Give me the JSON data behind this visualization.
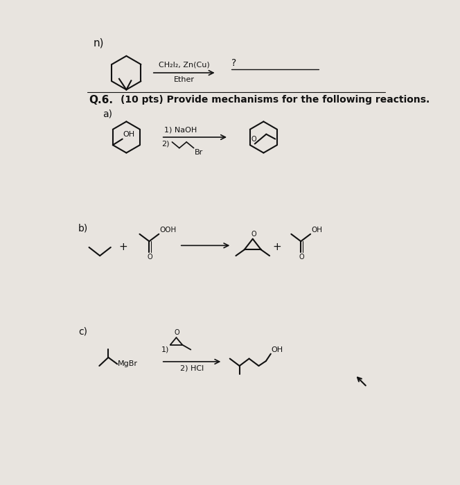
{
  "bg_color": "#e8e4df",
  "font_color": "#111111",
  "title_n": "n)",
  "reagent_n1": "CH₂I₂, Zn(Cu)",
  "reagent_n2": "Ether",
  "product_n": "?",
  "q6_label": "Q.6.",
  "q6_text": "(10 pts) Provide mechanisms for the following reactions.",
  "sub_a": "a)",
  "sub_b": "b)",
  "sub_c": "c)",
  "reagent_a1": "1) NaOH",
  "reagent_a2": "2)",
  "reagent_a2_br": "Br",
  "reagent_b_arrow": "→",
  "reagent_c1": "1)",
  "reagent_c2": "2) HCl",
  "mgbr": "MgBr",
  "ooh": "OOH",
  "oh_label": "OH",
  "o_label": "O",
  "plus": "+"
}
